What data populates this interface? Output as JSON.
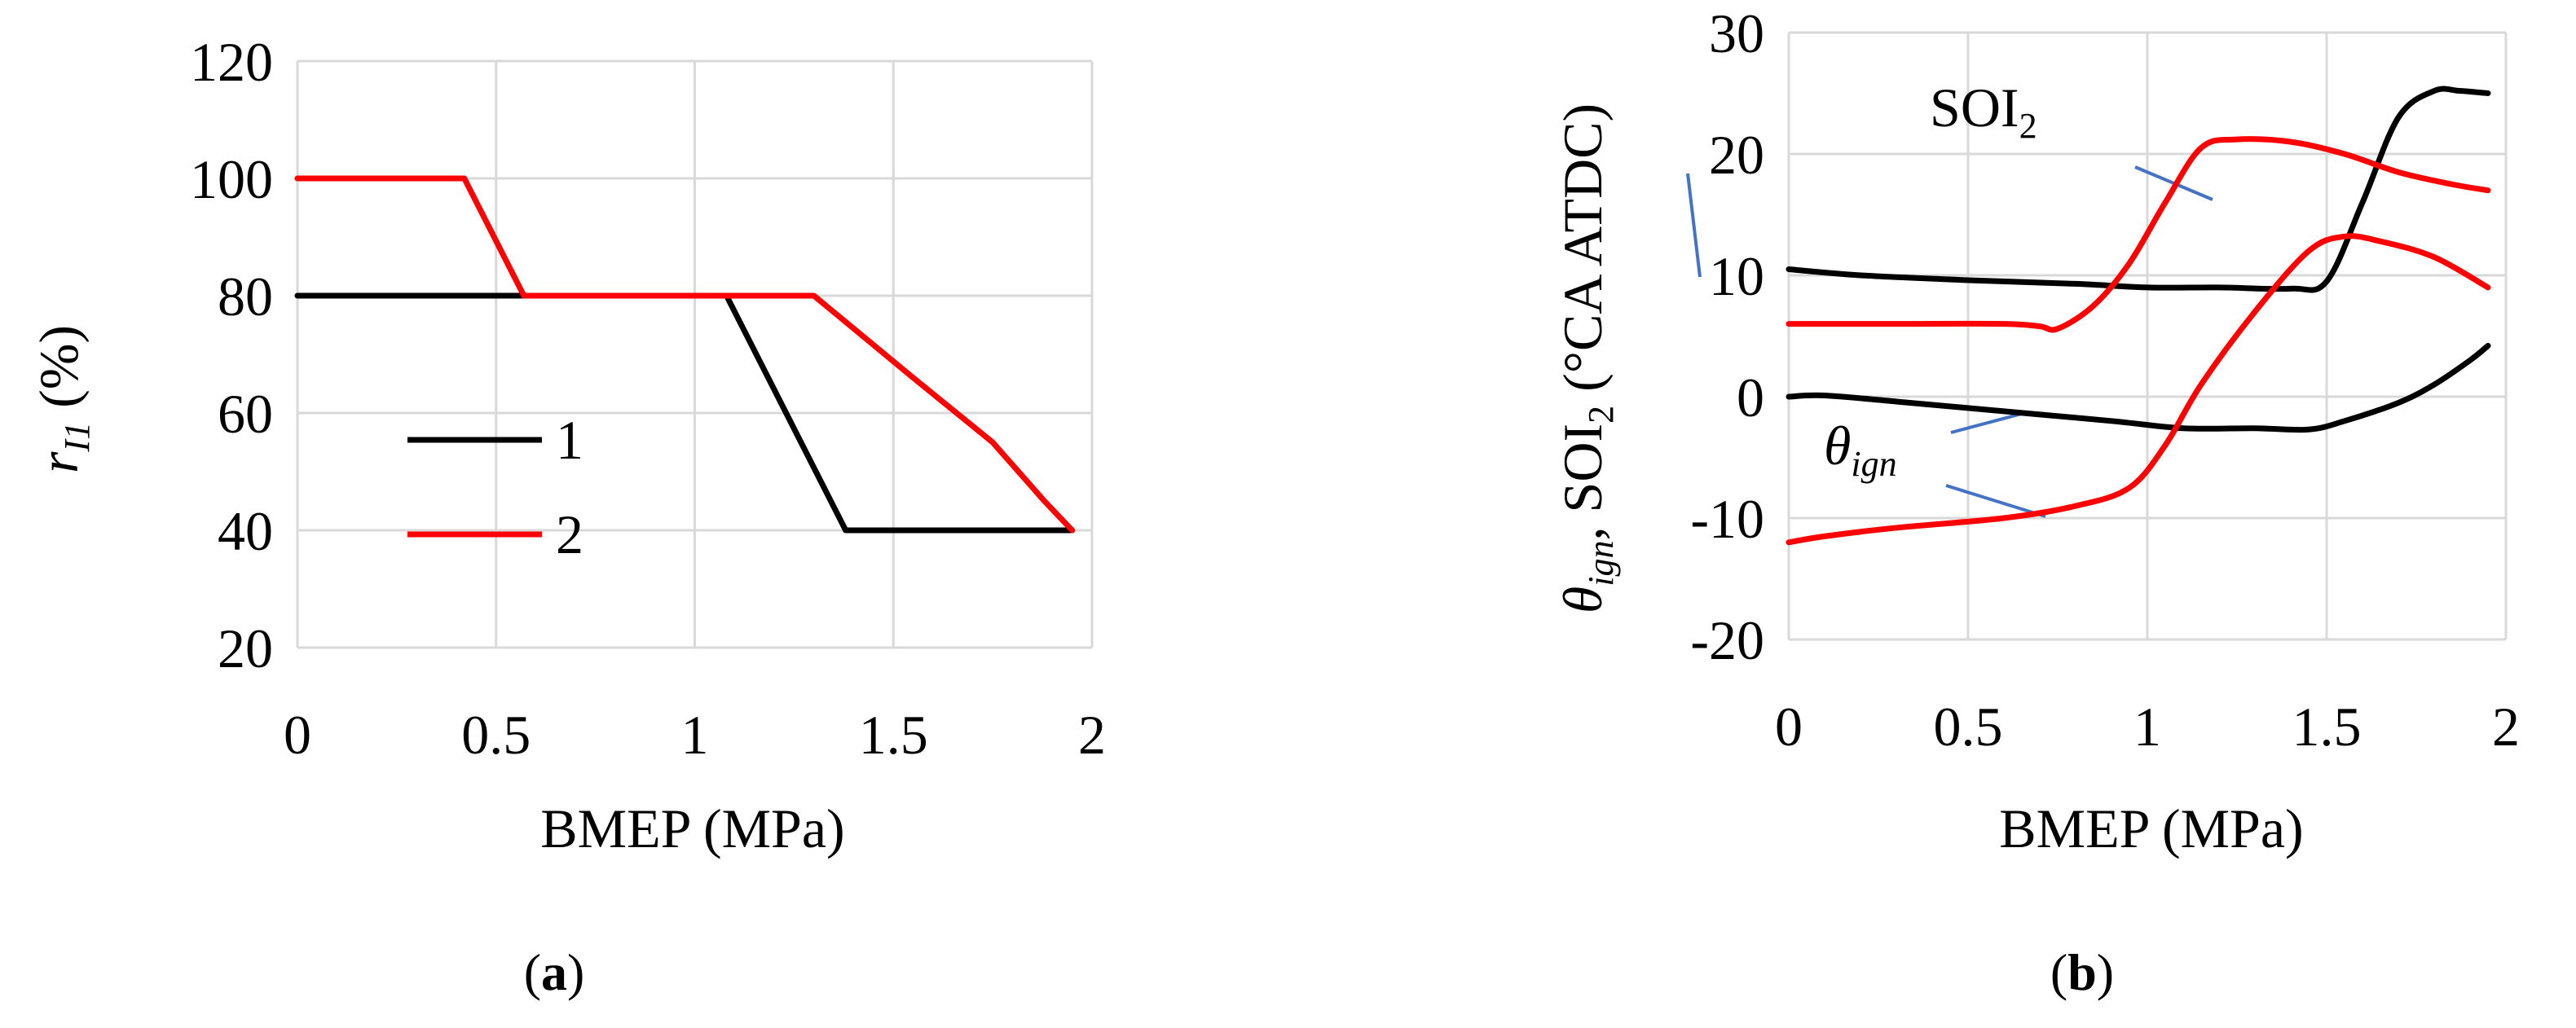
{
  "figure": {
    "panels": [
      {
        "label_open": "(",
        "label_letter": "a",
        "label_close": ")"
      },
      {
        "label_open": "(",
        "label_letter": "b",
        "label_close": ")"
      }
    ]
  },
  "colors": {
    "series_1": "#000000",
    "series_2": "#ff0000",
    "leader": "#4472c4",
    "grid": "#d9d9d9"
  },
  "chart_data": [
    {
      "type": "line",
      "panel": "a",
      "xlabel": "BMEP (MPa)",
      "ylabel": {
        "base": "r",
        "sub": "I1",
        "unit": " (%)"
      },
      "xlim": [
        0,
        2
      ],
      "ylim": [
        20,
        120
      ],
      "xticks": [
        0,
        0.5,
        1,
        1.5,
        2
      ],
      "xtick_labels": [
        "0",
        "0.5",
        "1",
        "1.5",
        "2"
      ],
      "yticks": [
        20,
        40,
        60,
        80,
        100,
        120
      ],
      "ytick_labels": [
        "20",
        "40",
        "60",
        "80",
        "100",
        "120"
      ],
      "grid": true,
      "legend": {
        "placement": "center-left",
        "entries": [
          "1",
          "2"
        ]
      },
      "series": [
        {
          "name": "1",
          "color": "#000000",
          "x": [
            0,
            1.08,
            1.38,
            1.95
          ],
          "y": [
            80,
            80,
            40,
            40
          ]
        },
        {
          "name": "2",
          "color": "#ff0000",
          "x": [
            0,
            0.42,
            0.57,
            1.3,
            1.55,
            1.75,
            1.88,
            1.95
          ],
          "y": [
            100,
            100,
            80,
            80,
            66,
            55,
            45,
            40
          ]
        }
      ]
    },
    {
      "type": "line",
      "panel": "b",
      "xlabel": "BMEP (MPa)",
      "ylabel": {
        "theta": "θ",
        "theta_sub": "ign",
        "sep": ", SOI",
        "soi_sub": "2",
        "unit": " (°CA ATDC)"
      },
      "xlim": [
        0,
        2
      ],
      "ylim": [
        -20,
        30
      ],
      "xticks": [
        0,
        0.5,
        1,
        1.5,
        2
      ],
      "xtick_labels": [
        "0",
        "0.5",
        "1",
        "1.5",
        "2"
      ],
      "yticks": [
        -20,
        -10,
        0,
        10,
        20,
        30
      ],
      "ytick_labels": [
        "-20",
        "-10",
        "0",
        "10",
        "20",
        "30"
      ],
      "grid": true,
      "annotations": [
        {
          "text": "SOI",
          "sub": "2"
        },
        {
          "text": "θ",
          "sub": "ign"
        }
      ],
      "series": [
        {
          "quantity": "SOI2",
          "color": "#000000",
          "x": [
            0,
            0.2,
            0.5,
            0.8,
            1.0,
            1.2,
            1.4,
            1.5,
            1.6,
            1.7,
            1.8,
            1.87,
            1.95
          ],
          "y": [
            10.5,
            10.0,
            9.6,
            9.3,
            9.0,
            9.0,
            8.9,
            9.5,
            16,
            23,
            25.2,
            25.2,
            25
          ]
        },
        {
          "quantity": "SOI2",
          "color": "#ff0000",
          "x": [
            0,
            0.3,
            0.6,
            0.7,
            0.75,
            0.85,
            0.95,
            1.05,
            1.15,
            1.25,
            1.4,
            1.55,
            1.7,
            1.85,
            1.95
          ],
          "y": [
            6,
            6,
            6,
            5.8,
            5.6,
            7.5,
            11,
            16,
            20.5,
            21.2,
            21,
            20,
            18.5,
            17.5,
            17
          ]
        },
        {
          "quantity": "θign",
          "color": "#000000",
          "x": [
            0,
            0.1,
            0.3,
            0.6,
            0.9,
            1.1,
            1.3,
            1.45,
            1.55,
            1.7,
            1.8,
            1.9,
            1.95
          ],
          "y": [
            0,
            0.1,
            -0.4,
            -1.2,
            -2.0,
            -2.6,
            -2.6,
            -2.7,
            -2.0,
            -0.5,
            1.0,
            3.0,
            4.2
          ]
        },
        {
          "quantity": "θign",
          "color": "#ff0000",
          "x": [
            0,
            0.1,
            0.3,
            0.6,
            0.8,
            0.95,
            1.05,
            1.15,
            1.3,
            1.45,
            1.55,
            1.65,
            1.8,
            1.95
          ],
          "y": [
            -12,
            -11.5,
            -10.8,
            -10,
            -9,
            -7.5,
            -4,
            1,
            7,
            12,
            13.2,
            12.8,
            11.5,
            9
          ]
        }
      ]
    }
  ]
}
